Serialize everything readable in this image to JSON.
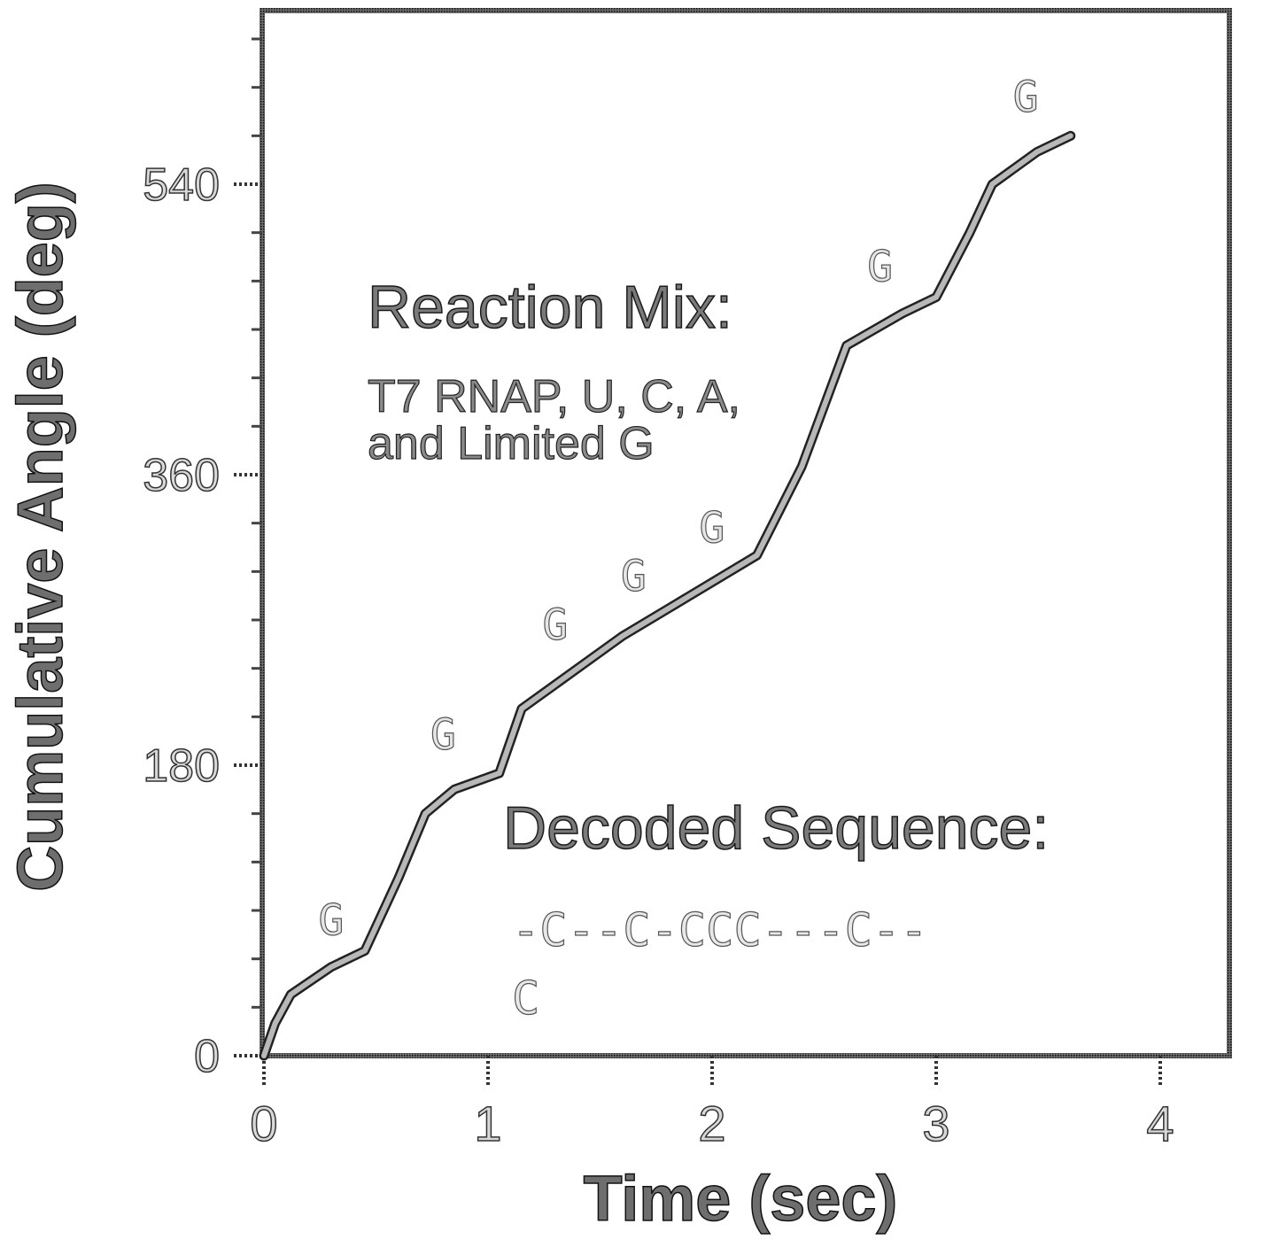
{
  "chart_data": {
    "type": "line",
    "title": "",
    "xlabel": "Time (sec)",
    "ylabel": "Cumulative Angle (deg)",
    "xlim": [
      0,
      4.3
    ],
    "ylim": [
      0,
      650
    ],
    "x_ticks": [
      0,
      1,
      2,
      3,
      4
    ],
    "y_ticks": [
      0,
      180,
      360,
      540
    ],
    "grid": false,
    "series": [
      {
        "points": [
          [
            0,
            0
          ],
          [
            0.05,
            20
          ],
          [
            0.12,
            38
          ],
          [
            0.3,
            55
          ],
          [
            0.45,
            65
          ],
          [
            0.6,
            110
          ],
          [
            0.72,
            150
          ],
          [
            0.85,
            165
          ],
          [
            1.05,
            175
          ],
          [
            1.15,
            215
          ],
          [
            1.3,
            230
          ],
          [
            1.6,
            260
          ],
          [
            1.9,
            285
          ],
          [
            2.2,
            310
          ],
          [
            2.4,
            365
          ],
          [
            2.6,
            440
          ],
          [
            2.85,
            460
          ],
          [
            3.0,
            470
          ],
          [
            3.15,
            510
          ],
          [
            3.25,
            540
          ],
          [
            3.45,
            560
          ],
          [
            3.6,
            570
          ]
        ]
      }
    ],
    "annotations": {
      "reaction_title": "Reaction Mix:",
      "reaction_line1": "T7 RNAP, U, C, A,",
      "reaction_line2": "and Limited G",
      "decoded_title": "Decoded Sequence:",
      "decoded_line1": "-C--C-CCC---C--",
      "decoded_line2": "C"
    },
    "g_markers": [
      {
        "label": "G",
        "x": 0.3,
        "y": 75
      },
      {
        "label": "G",
        "x": 0.8,
        "y": 190
      },
      {
        "label": "G",
        "x": 1.3,
        "y": 258
      },
      {
        "label": "G",
        "x": 1.65,
        "y": 288
      },
      {
        "label": "G",
        "x": 2.0,
        "y": 318
      },
      {
        "label": "G",
        "x": 2.75,
        "y": 480
      },
      {
        "label": "G",
        "x": 3.4,
        "y": 585
      }
    ]
  }
}
